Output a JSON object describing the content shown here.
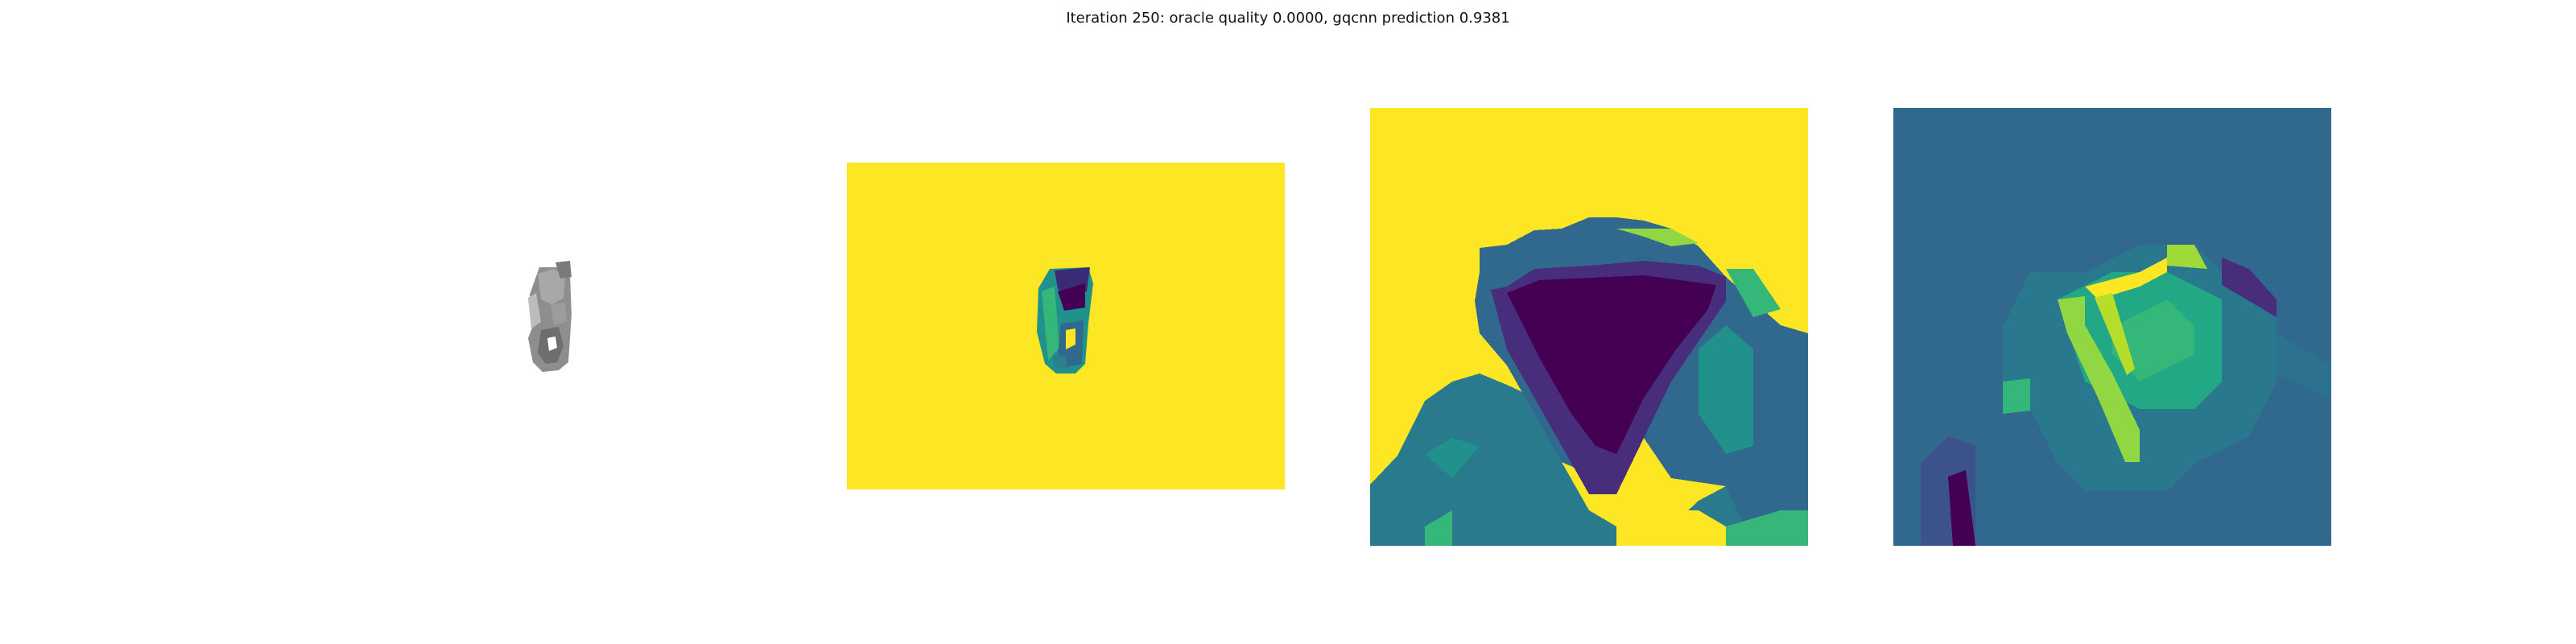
{
  "figure": {
    "title": "Iteration 250: oracle quality 0.0000, gqcnn prediction 0.9381"
  },
  "panels": [
    {
      "name": "rendered-object-image"
    },
    {
      "name": "depth-image"
    },
    {
      "name": "depth-crop-image"
    },
    {
      "name": "gqcnn-input-image"
    }
  ],
  "colors": {
    "background": "#ffffff",
    "object_gray": "#8a8a8a",
    "viridis_yellow": "#fde725",
    "viridis_dark": "#440154",
    "viridis_purple": "#472d7b",
    "viridis_blue": "#31688e",
    "viridis_teal": "#21918c",
    "viridis_green": "#35b779",
    "viridis_lime": "#90d743"
  }
}
